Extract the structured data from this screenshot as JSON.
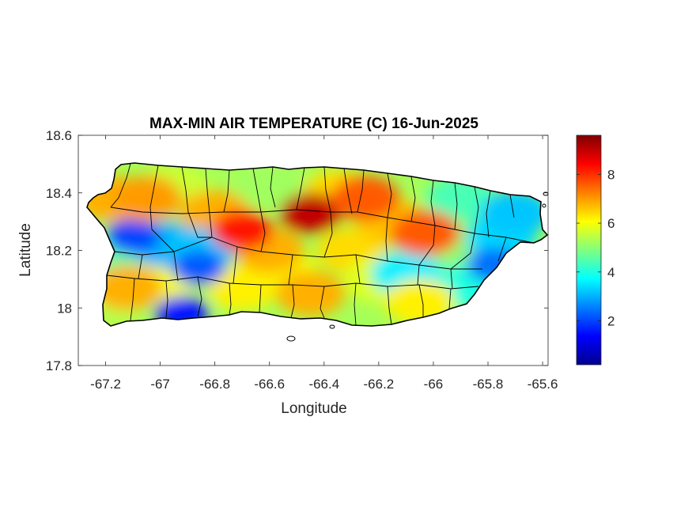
{
  "chart_data": {
    "type": "heatmap",
    "title": "MAX-MIN AIR TEMPERATURE (C) 16-Jun-2025",
    "xlabel": "Longitude",
    "ylabel": "Latitude",
    "xlim": [
      -67.3,
      -65.58
    ],
    "ylim": [
      17.8,
      18.6
    ],
    "xticks": [
      -67.2,
      -67,
      -66.8,
      -66.6,
      -66.4,
      -66.2,
      -66,
      -65.8,
      -65.6
    ],
    "xtick_labels": [
      "-67.2",
      "-67",
      "-66.8",
      "-66.6",
      "-66.4",
      "-66.2",
      "-66",
      "-65.8",
      "-65.6"
    ],
    "yticks": [
      17.8,
      18,
      18.2,
      18.4,
      18.6
    ],
    "ytick_labels": [
      "17.8",
      "18",
      "18.2",
      "18.4",
      "18.6"
    ],
    "colorbar": {
      "colormap": "jet",
      "range": [
        0.2,
        9.6
      ],
      "ticks": [
        2,
        4,
        6,
        8
      ],
      "tick_labels": [
        "2",
        "4",
        "6",
        "8"
      ]
    },
    "region": "Puerto Rico",
    "grid": false,
    "hotspots": [
      {
        "lon": -66.45,
        "lat": 18.33,
        "value": 9.0
      },
      {
        "lon": -66.7,
        "lat": 18.27,
        "value": 8.2
      },
      {
        "lon": -66.25,
        "lat": 18.38,
        "value": 7.6
      },
      {
        "lon": -66.03,
        "lat": 18.26,
        "value": 7.6
      },
      {
        "lon": -67.05,
        "lat": 18.38,
        "value": 7.0
      },
      {
        "lon": -67.12,
        "lat": 18.07,
        "value": 6.8
      },
      {
        "lon": -66.45,
        "lat": 18.05,
        "value": 6.8
      },
      {
        "lon": -66.05,
        "lat": 18.02,
        "value": 6.2
      }
    ],
    "coldspots": [
      {
        "lon": -67.1,
        "lat": 18.25,
        "value": 2.0
      },
      {
        "lon": -66.86,
        "lat": 18.14,
        "value": 2.2
      },
      {
        "lon": -66.92,
        "lat": 17.98,
        "value": 1.6
      },
      {
        "lon": -65.78,
        "lat": 18.15,
        "value": 2.4
      },
      {
        "lon": -65.7,
        "lat": 18.33,
        "value": 3.2
      },
      {
        "lon": -66.1,
        "lat": 18.12,
        "value": 3.6
      }
    ]
  }
}
